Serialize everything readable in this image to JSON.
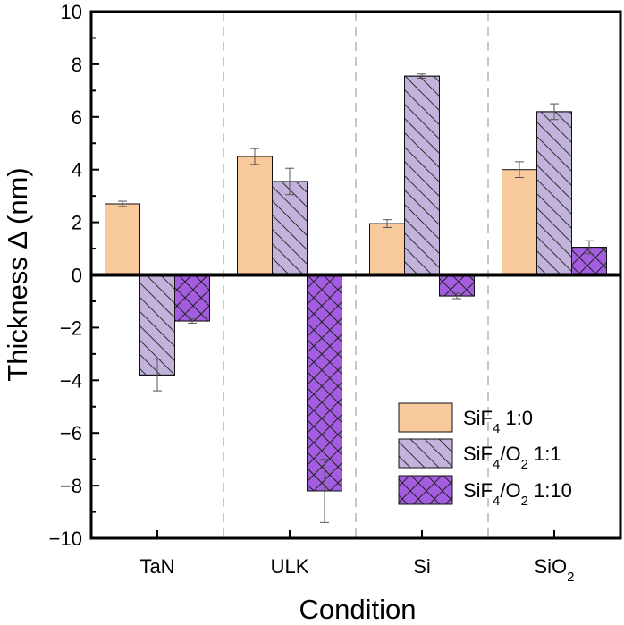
{
  "chart_data": {
    "type": "bar",
    "categories": [
      "TaN",
      "ULK",
      "Si",
      "SiO2"
    ],
    "category_labels": [
      {
        "base": "TaN",
        "sub": ""
      },
      {
        "base": "ULK",
        "sub": ""
      },
      {
        "base": "Si",
        "sub": ""
      },
      {
        "base": "SiO",
        "sub": "2"
      }
    ],
    "series": [
      {
        "name": "SiF4 1:0",
        "label_parts": [
          {
            "t": "SiF"
          },
          {
            "t": "4",
            "sub": true
          },
          {
            "t": " 1:0"
          }
        ],
        "values": [
          2.7,
          4.5,
          1.95,
          4.0
        ],
        "errors": [
          0.1,
          0.3,
          0.15,
          0.3
        ],
        "fill": "#f8c99b",
        "pattern": "none"
      },
      {
        "name": "SiF4/O2 1:1",
        "label_parts": [
          {
            "t": "SiF"
          },
          {
            "t": "4",
            "sub": true
          },
          {
            "t": "/O"
          },
          {
            "t": "2",
            "sub": true
          },
          {
            "t": " 1:1"
          }
        ],
        "values": [
          -3.8,
          3.55,
          7.55,
          6.2
        ],
        "errors": [
          0.6,
          0.5,
          0.08,
          0.3
        ],
        "fill": "#c2b2dc",
        "pattern": "diagonal"
      },
      {
        "name": "SiF4/O2 1:10",
        "label_parts": [
          {
            "t": "SiF"
          },
          {
            "t": "4",
            "sub": true
          },
          {
            "t": "/O"
          },
          {
            "t": "2",
            "sub": true
          },
          {
            "t": " 1:10"
          }
        ],
        "values": [
          -1.75,
          -8.2,
          -0.8,
          1.05
        ],
        "errors": [
          0.08,
          1.2,
          0.1,
          0.25
        ],
        "fill": "#a25de0",
        "pattern": "crosshatch"
      }
    ],
    "xlabel": "Condition",
    "ylabel": "Thickness Δ (nm)",
    "ylim": [
      -10,
      10
    ],
    "yticks": [
      -10,
      -8,
      -6,
      -4,
      -2,
      0,
      2,
      4,
      6,
      8,
      10
    ],
    "ytick_labels": [
      "−10",
      "−8",
      "−6",
      "−4",
      "−2",
      "0",
      "2",
      "4",
      "6",
      "8",
      "10"
    ],
    "grid": false,
    "category_separators": "dashed",
    "legend_position": "bottom-right"
  }
}
